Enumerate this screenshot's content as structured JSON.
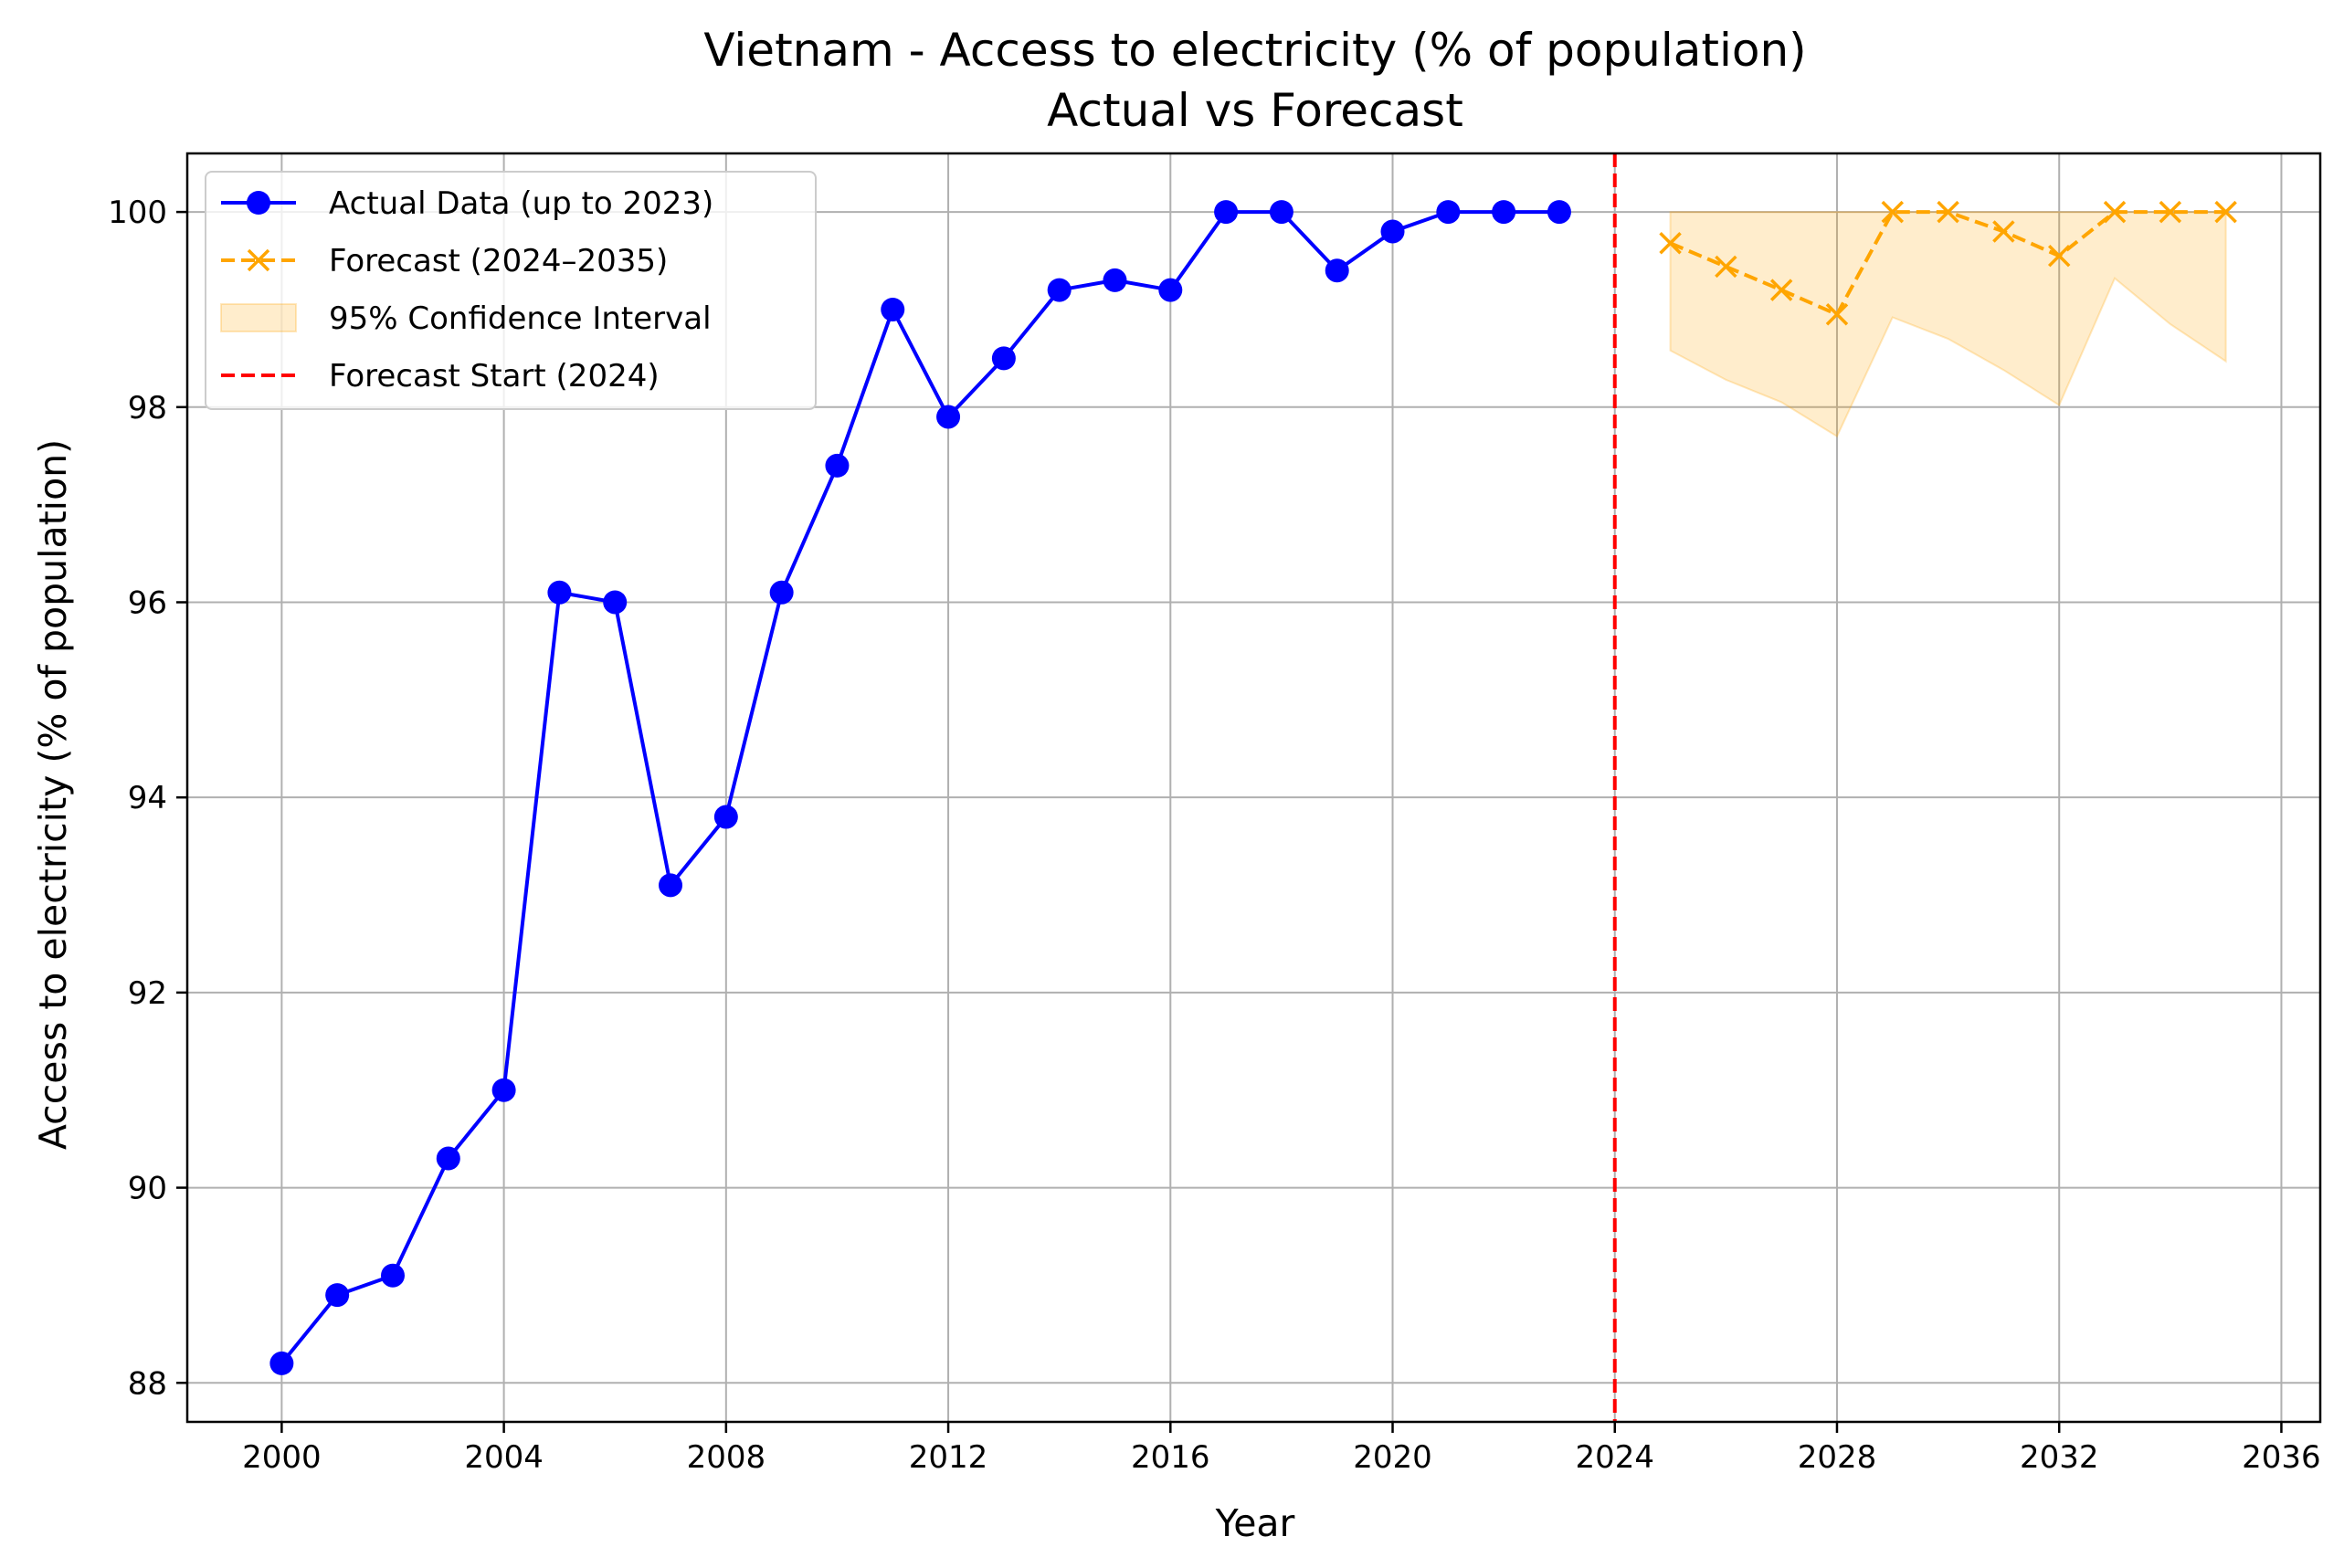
{
  "chart_data": {
    "type": "line",
    "title": "Vietnam - Access to electricity (% of population)",
    "subtitle": "Actual vs Forecast",
    "xlabel": "Year",
    "ylabel": "Access to electricity (% of population)",
    "xlim": [
      1998.3,
      2036.7
    ],
    "ylim": [
      87.6,
      100.6
    ],
    "xticks": [
      2000,
      2004,
      2008,
      2012,
      2016,
      2020,
      2024,
      2028,
      2032,
      2036
    ],
    "yticks": [
      88,
      90,
      92,
      94,
      96,
      98,
      100
    ],
    "grid": true,
    "legend_position": "top-left",
    "series": [
      {
        "name": "Actual Data (up to 2023)",
        "style": "solid-line-circle-markers",
        "color": "#0000ff",
        "x": [
          2000,
          2001,
          2002,
          2003,
          2004,
          2005,
          2006,
          2007,
          2008,
          2009,
          2010,
          2011,
          2012,
          2013,
          2014,
          2015,
          2016,
          2017,
          2018,
          2019,
          2020,
          2021,
          2022,
          2023
        ],
        "values": [
          88.2,
          88.9,
          89.1,
          90.3,
          91.0,
          96.1,
          96.0,
          93.1,
          93.8,
          96.1,
          97.4,
          99.0,
          97.9,
          98.5,
          99.2,
          99.3,
          99.2,
          100.0,
          100.0,
          99.4,
          99.8,
          100.0,
          100.0,
          100.0
        ]
      },
      {
        "name": "Forecast (2024–2035)",
        "style": "dashed-line-x-markers",
        "color": "#ffa500",
        "x": [
          2025,
          2026,
          2027,
          2028,
          2029,
          2030,
          2031,
          2032,
          2033,
          2034,
          2035
        ],
        "values": [
          99.68,
          99.44,
          99.2,
          98.95,
          100.0,
          100.0,
          99.8,
          99.55,
          100.0,
          100.0,
          100.0
        ]
      }
    ],
    "confidence_interval": {
      "name": "95% Confidence Interval",
      "color": "#ffa500",
      "x": [
        2025,
        2026,
        2027,
        2028,
        2029,
        2030,
        2031,
        2032,
        2033,
        2034,
        2035
      ],
      "lower": [
        98.58,
        98.28,
        98.05,
        97.7,
        98.92,
        98.7,
        98.38,
        98.02,
        99.32,
        98.85,
        98.47
      ],
      "upper": [
        100.0,
        100.0,
        100.0,
        100.0,
        100.0,
        100.0,
        100.0,
        100.0,
        100.0,
        100.0,
        100.0
      ]
    },
    "vline": {
      "name": "Forecast Start (2024)",
      "x": 2024,
      "color": "#ff0000",
      "style": "dashed"
    }
  }
}
